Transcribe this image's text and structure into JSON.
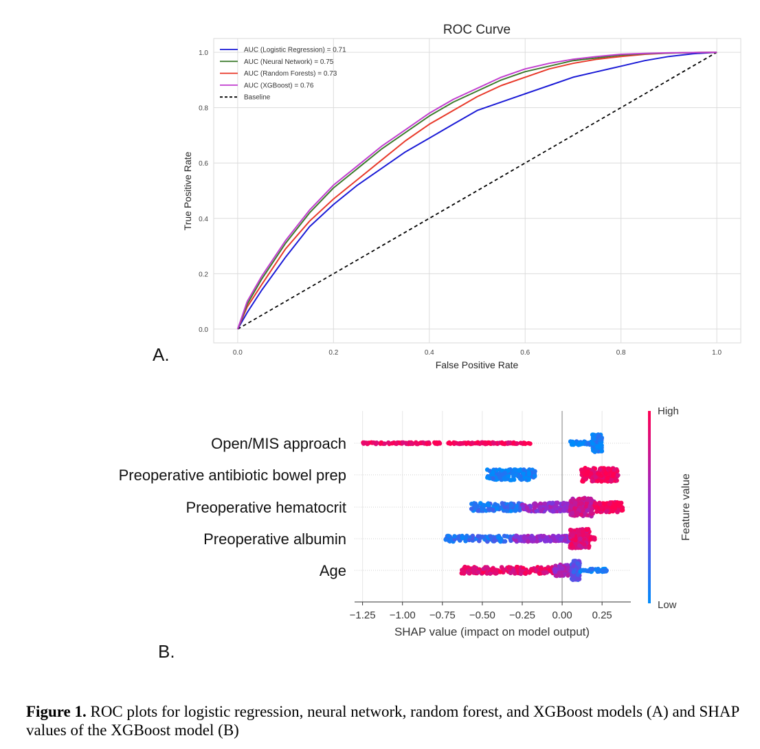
{
  "panel_labels": {
    "a": "A.",
    "b": "B."
  },
  "caption": {
    "label": "Figure 1.",
    "text": " ROC plots for logistic regression, neural network, random forest, and XGBoost models (A) and SHAP values of the XGBoost model (B)"
  },
  "chart_data": [
    {
      "type": "line",
      "title": "ROC Curve",
      "xlabel": "False Positive Rate",
      "ylabel": "True Positive Rate",
      "xlim": [
        -0.05,
        1.05
      ],
      "ylim": [
        -0.05,
        1.05
      ],
      "xticks": [
        "0.0",
        "0.2",
        "0.4",
        "0.6",
        "0.8",
        "1.0"
      ],
      "yticks": [
        "0.0",
        "0.2",
        "0.4",
        "0.6",
        "0.8",
        "1.0"
      ],
      "grid": true,
      "legend_position": "top-left",
      "series": [
        {
          "name": "AUC (Logistic Regression) = 0.71",
          "color": "#1a1ad6",
          "dash": false,
          "x": [
            0,
            0.02,
            0.05,
            0.1,
            0.15,
            0.2,
            0.25,
            0.3,
            0.35,
            0.4,
            0.45,
            0.5,
            0.55,
            0.6,
            0.65,
            0.7,
            0.75,
            0.8,
            0.85,
            0.9,
            0.95,
            1.0
          ],
          "y": [
            0,
            0.06,
            0.14,
            0.26,
            0.37,
            0.45,
            0.52,
            0.58,
            0.64,
            0.69,
            0.74,
            0.79,
            0.82,
            0.85,
            0.88,
            0.91,
            0.93,
            0.95,
            0.97,
            0.985,
            0.995,
            1.0
          ]
        },
        {
          "name": "AUC (Neural Network) = 0.75",
          "color": "#3c7a2c",
          "dash": false,
          "x": [
            0,
            0.02,
            0.05,
            0.1,
            0.15,
            0.2,
            0.25,
            0.3,
            0.35,
            0.4,
            0.45,
            0.5,
            0.55,
            0.6,
            0.65,
            0.7,
            0.75,
            0.8,
            0.85,
            0.9,
            0.95,
            1.0
          ],
          "y": [
            0,
            0.09,
            0.18,
            0.31,
            0.42,
            0.51,
            0.58,
            0.65,
            0.71,
            0.77,
            0.82,
            0.86,
            0.9,
            0.93,
            0.95,
            0.97,
            0.98,
            0.99,
            0.995,
            0.997,
            0.999,
            1.0
          ]
        },
        {
          "name": "AUC (Random Forests) = 0.73",
          "color": "#e8392a",
          "dash": false,
          "x": [
            0,
            0.02,
            0.05,
            0.1,
            0.15,
            0.2,
            0.25,
            0.3,
            0.35,
            0.4,
            0.45,
            0.5,
            0.55,
            0.6,
            0.65,
            0.7,
            0.75,
            0.8,
            0.85,
            0.9,
            0.95,
            1.0
          ],
          "y": [
            0,
            0.08,
            0.16,
            0.29,
            0.39,
            0.47,
            0.54,
            0.61,
            0.68,
            0.74,
            0.79,
            0.84,
            0.88,
            0.91,
            0.94,
            0.96,
            0.975,
            0.985,
            0.993,
            0.997,
            0.999,
            1.0
          ]
        },
        {
          "name": "AUC (XGBoost) = 0.76",
          "color": "#c13ccf",
          "dash": false,
          "x": [
            0,
            0.02,
            0.05,
            0.1,
            0.15,
            0.2,
            0.25,
            0.3,
            0.35,
            0.4,
            0.45,
            0.5,
            0.55,
            0.6,
            0.65,
            0.7,
            0.75,
            0.8,
            0.85,
            0.9,
            0.95,
            1.0
          ],
          "y": [
            0,
            0.1,
            0.19,
            0.32,
            0.43,
            0.52,
            0.59,
            0.66,
            0.72,
            0.78,
            0.83,
            0.87,
            0.91,
            0.94,
            0.96,
            0.975,
            0.985,
            0.993,
            0.996,
            0.998,
            0.999,
            1.0
          ]
        },
        {
          "name": "Baseline",
          "color": "#000000",
          "dash": true,
          "x": [
            0,
            1
          ],
          "y": [
            0,
            1
          ]
        }
      ]
    },
    {
      "type": "scatter",
      "subtype": "shap-beeswarm",
      "xlabel": "SHAP value (impact on model output)",
      "xlim": [
        -1.3,
        0.43
      ],
      "xticks": [
        -1.25,
        -1.0,
        -0.75,
        -0.5,
        -0.25,
        0.0,
        0.25
      ],
      "xtick_labels": [
        "−1.25",
        "−1.00",
        "−0.75",
        "−0.50",
        "−0.25",
        "0.00",
        "0.25"
      ],
      "colorbar": {
        "label": "Feature value",
        "high": "High",
        "low": "Low",
        "high_color": "#ff0052",
        "low_color": "#008bfb"
      },
      "features": [
        {
          "name": "Open/MIS approach",
          "segments": [
            {
              "from": -1.25,
              "to": -0.28,
              "value": 0.95,
              "count": 190,
              "width": 0.08
            },
            {
              "from": -0.26,
              "to": -0.2,
              "value": 0.95,
              "count": 8,
              "width": 0.06
            },
            {
              "from": 0.05,
              "to": 0.23,
              "value": 0.05,
              "count": 60,
              "width": 0.18
            },
            {
              "from": 0.19,
              "to": 0.25,
              "value": 0.05,
              "count": 140,
              "width": 0.9
            }
          ]
        },
        {
          "name": "Preoperative antibiotic bowel prep",
          "segments": [
            {
              "from": -0.47,
              "to": -0.17,
              "value": 0.05,
              "count": 140,
              "width": 0.55
            },
            {
              "from": 0.12,
              "to": 0.35,
              "value": 0.95,
              "count": 160,
              "width": 0.7
            }
          ]
        },
        {
          "name": "Preoperative hematocrit",
          "segments": [
            {
              "from": -0.57,
              "to": -0.25,
              "value": 0.12,
              "count": 120,
              "width": 0.4
            },
            {
              "from": -0.25,
              "to": 0.05,
              "value": 0.55,
              "count": 150,
              "width": 0.45
            },
            {
              "from": 0.05,
              "to": 0.2,
              "value": 0.75,
              "count": 160,
              "width": 0.95
            },
            {
              "from": 0.2,
              "to": 0.38,
              "value": 0.95,
              "count": 110,
              "width": 0.5
            }
          ]
        },
        {
          "name": "Preoperative albumin",
          "segments": [
            {
              "from": -0.73,
              "to": -0.3,
              "value": 0.15,
              "count": 110,
              "width": 0.3
            },
            {
              "from": -0.3,
              "to": 0.05,
              "value": 0.55,
              "count": 130,
              "width": 0.3
            },
            {
              "from": 0.05,
              "to": 0.17,
              "value": 0.85,
              "count": 170,
              "width": 1.0
            },
            {
              "from": 0.17,
              "to": 0.21,
              "value": 0.9,
              "count": 15,
              "width": 0.2
            }
          ]
        },
        {
          "name": "Age",
          "segments": [
            {
              "from": -0.63,
              "to": -0.05,
              "value": 0.9,
              "count": 190,
              "width": 0.35
            },
            {
              "from": -0.05,
              "to": 0.05,
              "value": 0.6,
              "count": 60,
              "width": 0.6
            },
            {
              "from": 0.06,
              "to": 0.11,
              "value": 0.3,
              "count": 110,
              "width": 1.0
            },
            {
              "from": 0.11,
              "to": 0.28,
              "value": 0.05,
              "count": 40,
              "width": 0.15
            }
          ]
        }
      ]
    }
  ]
}
